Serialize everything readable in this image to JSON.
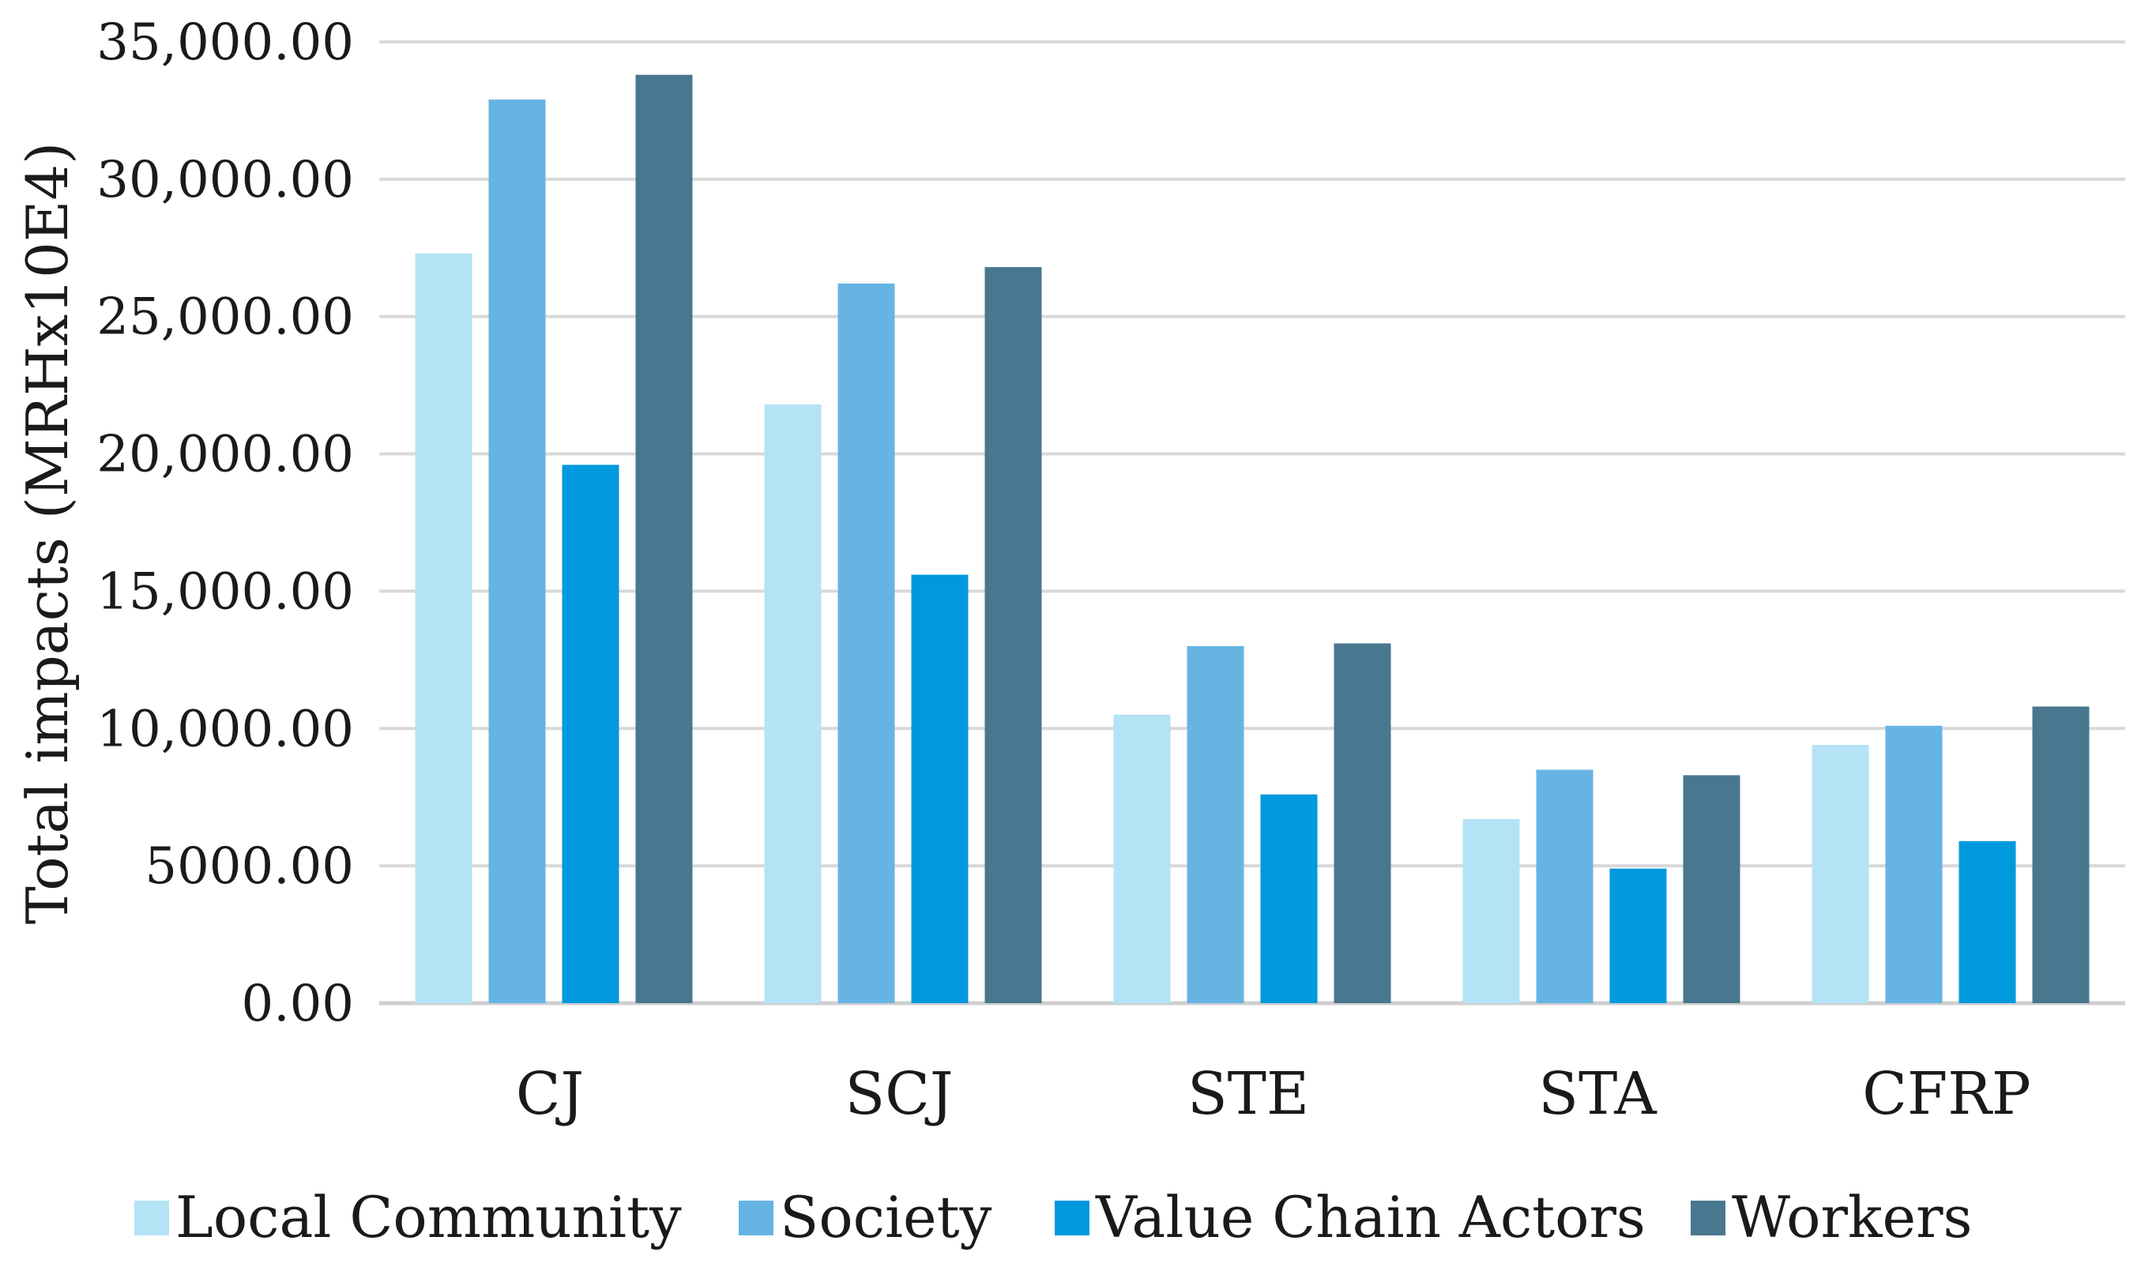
{
  "chart_data": {
    "type": "bar",
    "title": "",
    "xlabel": "",
    "ylabel": "Total impacts (MRHx10E4)",
    "categories": [
      "CJ",
      "SCJ",
      "STE",
      "STA",
      "CFRP"
    ],
    "ylim": [
      0,
      35000
    ],
    "yticks": [
      0,
      5000,
      10000,
      15000,
      20000,
      25000,
      30000,
      35000
    ],
    "ytick_labels": [
      "0.00",
      "5000.00",
      "10,000.00",
      "15,000.00",
      "20,000.00",
      "25,000.00",
      "30,000.00",
      "35,000.00"
    ],
    "grid": true,
    "legend_position": "bottom",
    "series": [
      {
        "name": "Local Community",
        "color": "#b3e3f5",
        "values": [
          27300,
          21800,
          10500,
          6700,
          9400
        ]
      },
      {
        "name": "Society",
        "color": "#66b4e3",
        "values": [
          32900,
          26200,
          13000,
          8500,
          10100
        ]
      },
      {
        "name": "Value Chain Actors",
        "color": "#0099dd",
        "values": [
          19600,
          15600,
          7600,
          4900,
          5900
        ]
      },
      {
        "name": "Workers",
        "color": "#48778f",
        "values": [
          33800,
          26800,
          13100,
          8300,
          10800
        ]
      }
    ]
  }
}
